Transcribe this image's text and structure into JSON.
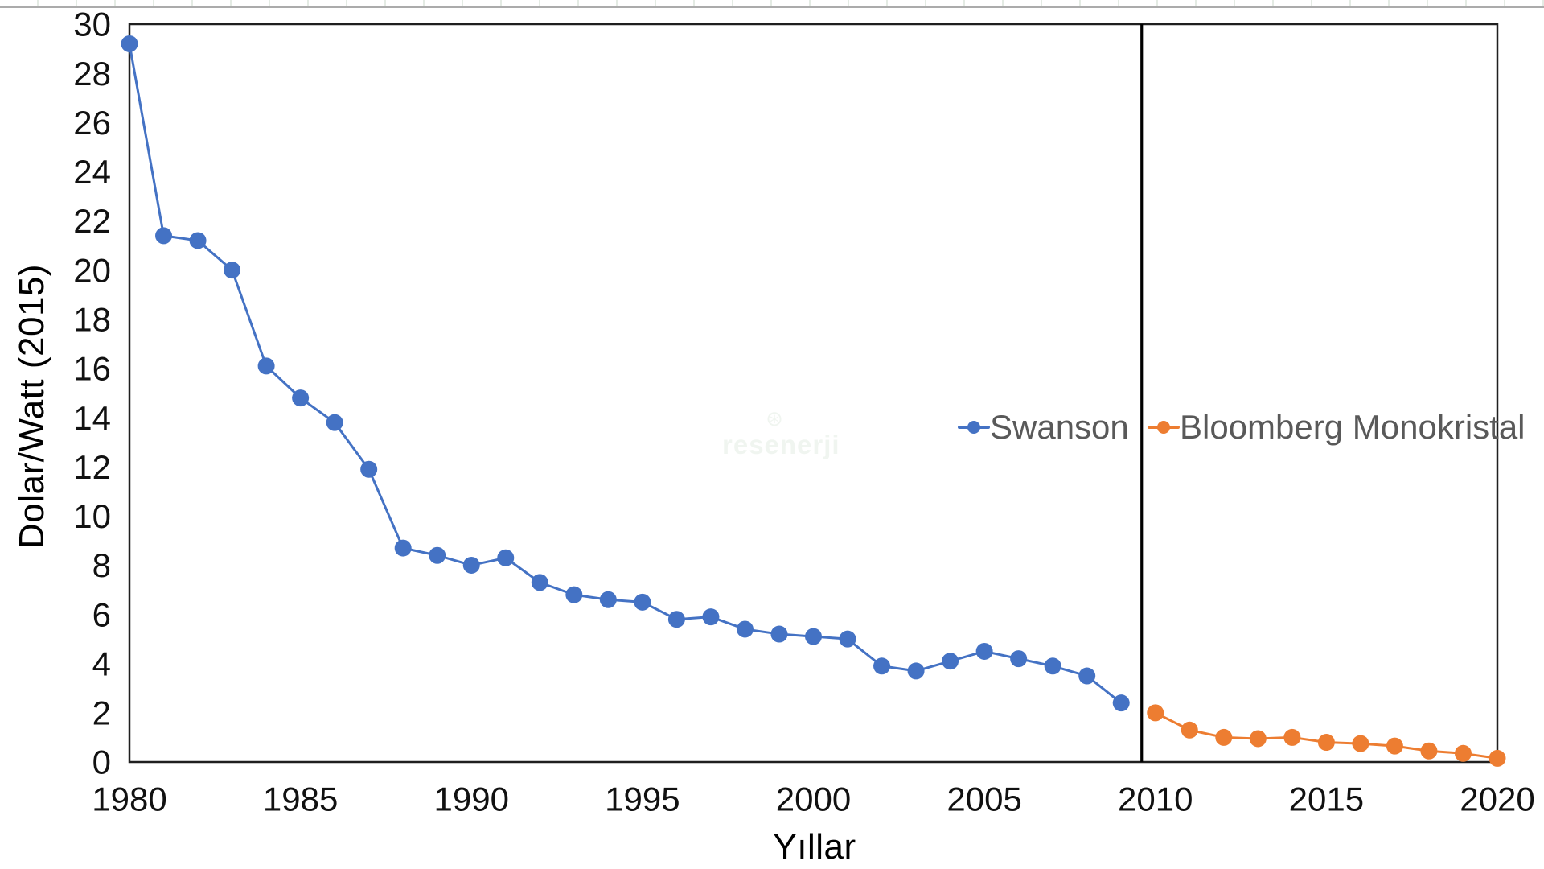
{
  "page": {
    "background": "#ffffff"
  },
  "watermark": {
    "text": "resenerji",
    "icon": "wind-turbine"
  },
  "chart_data": {
    "type": "line",
    "title": "",
    "xlabel": "Yıllar",
    "ylabel": "Dolar/Watt (2015)",
    "xlim": [
      1980,
      2020
    ],
    "ylim": [
      0,
      30
    ],
    "x_ticks": [
      1980,
      1985,
      1990,
      1995,
      2000,
      2005,
      2010,
      2015,
      2020
    ],
    "y_ticks": [
      0,
      2,
      4,
      6,
      8,
      10,
      12,
      14,
      16,
      18,
      20,
      22,
      24,
      26,
      28,
      30
    ],
    "grid": false,
    "legend_position": "inside-right",
    "divider_x": 2009.6,
    "axis_color": "#1f1f1f",
    "divider_color": "#000000",
    "tick_color": "#111111",
    "legend_text_color": "#595959",
    "series": [
      {
        "name": "Swanson",
        "color": "#4472C4",
        "x": [
          1980,
          1981,
          1982,
          1983,
          1984,
          1985,
          1986,
          1987,
          1988,
          1989,
          1990,
          1991,
          1992,
          1993,
          1994,
          1995,
          1996,
          1997,
          1998,
          1999,
          2000,
          2001,
          2002,
          2003,
          2004,
          2005,
          2006,
          2007,
          2008,
          2009
        ],
        "values": [
          29.2,
          21.4,
          21.2,
          20.0,
          16.1,
          14.8,
          13.8,
          11.9,
          8.7,
          8.4,
          8.0,
          8.3,
          7.3,
          6.8,
          6.6,
          6.5,
          5.8,
          5.9,
          5.4,
          5.2,
          5.1,
          5.0,
          3.9,
          3.7,
          4.1,
          4.5,
          4.2,
          3.9,
          3.5,
          2.4
        ]
      },
      {
        "name": "Bloomberg Monokristal",
        "color": "#ED7D31",
        "x": [
          2010,
          2011,
          2012,
          2013,
          2014,
          2015,
          2016,
          2017,
          2018,
          2019,
          2020
        ],
        "values": [
          2.0,
          1.3,
          1.0,
          0.95,
          1.0,
          0.8,
          0.75,
          0.65,
          0.45,
          0.35,
          0.15
        ]
      }
    ]
  }
}
